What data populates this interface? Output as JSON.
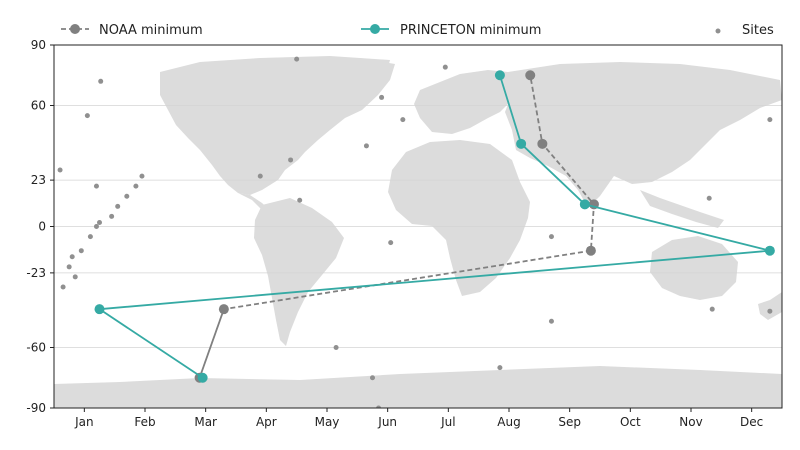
{
  "chart_data": {
    "type": "line",
    "title": "",
    "xlabel": "",
    "ylabel": "",
    "x_axis": {
      "type": "months",
      "range": [
        0.5,
        12.5
      ],
      "ticks": [
        {
          "value": 1,
          "label": "Jan"
        },
        {
          "value": 2,
          "label": "Feb"
        },
        {
          "value": 3,
          "label": "Mar"
        },
        {
          "value": 4,
          "label": "Apr"
        },
        {
          "value": 5,
          "label": "May"
        },
        {
          "value": 6,
          "label": "Jun"
        },
        {
          "value": 7,
          "label": "Jul"
        },
        {
          "value": 8,
          "label": "Aug"
        },
        {
          "value": 9,
          "label": "Sep"
        },
        {
          "value": 10,
          "label": "Oct"
        },
        {
          "value": 11,
          "label": "Nov"
        },
        {
          "value": 12,
          "label": "Dec"
        }
      ]
    },
    "y_axis": {
      "range": [
        -90,
        90
      ],
      "ticks": [
        {
          "value": 90,
          "label": "90"
        },
        {
          "value": 60,
          "label": "60"
        },
        {
          "value": 23,
          "label": "23"
        },
        {
          "value": 0,
          "label": "0"
        },
        {
          "value": -23,
          "label": "-23"
        },
        {
          "value": -60,
          "label": "-60"
        },
        {
          "value": -90,
          "label": "-90"
        }
      ]
    },
    "grid": "horizontal",
    "legend_position": "top",
    "background": "world map (land masses) behind the plot",
    "series": [
      {
        "name": "NOAA minimum",
        "style": "dashed",
        "color": "#808080",
        "points": [
          {
            "x": 3.3,
            "y": -41
          },
          {
            "x": 2.9,
            "y": -75
          },
          {
            "x": 3.3,
            "y": -41
          },
          {
            "x": 9.35,
            "y": -12
          },
          {
            "x": 9.4,
            "y": 11
          },
          {
            "x": 8.55,
            "y": 41
          },
          {
            "x": 8.35,
            "y": 75
          }
        ]
      },
      {
        "name": "PRINCETON minimum",
        "style": "solid",
        "color": "#35aaa4",
        "points": [
          {
            "x": 7.85,
            "y": 75
          },
          {
            "x": 8.2,
            "y": 41
          },
          {
            "x": 9.25,
            "y": 11
          },
          {
            "x": 12.3,
            "y": -12
          },
          {
            "x": 1.25,
            "y": -41
          },
          {
            "x": 2.95,
            "y": -75
          }
        ]
      },
      {
        "name": "Sites",
        "style": "scatter",
        "color": "#909090",
        "points": [
          {
            "x": 0.6,
            "y": 28
          },
          {
            "x": 0.75,
            "y": -20
          },
          {
            "x": 0.65,
            "y": -30
          },
          {
            "x": 0.8,
            "y": -15
          },
          {
            "x": 0.85,
            "y": -25
          },
          {
            "x": 0.95,
            "y": -12
          },
          {
            "x": 1.1,
            "y": -5
          },
          {
            "x": 1.2,
            "y": 0
          },
          {
            "x": 1.25,
            "y": 2
          },
          {
            "x": 1.45,
            "y": 5
          },
          {
            "x": 1.55,
            "y": 10
          },
          {
            "x": 1.7,
            "y": 15
          },
          {
            "x": 1.85,
            "y": 20
          },
          {
            "x": 1.95,
            "y": 25
          },
          {
            "x": 1.2,
            "y": 20
          },
          {
            "x": 1.05,
            "y": 55
          },
          {
            "x": 1.27,
            "y": 72
          },
          {
            "x": 3.9,
            "y": 25
          },
          {
            "x": 4.4,
            "y": 33
          },
          {
            "x": 4.55,
            "y": 13
          },
          {
            "x": 4.5,
            "y": 83
          },
          {
            "x": 5.15,
            "y": -60
          },
          {
            "x": 5.65,
            "y": 40
          },
          {
            "x": 5.9,
            "y": 64
          },
          {
            "x": 6.25,
            "y": 53
          },
          {
            "x": 6.05,
            "y": -8
          },
          {
            "x": 5.75,
            "y": -75
          },
          {
            "x": 5.85,
            "y": -90
          },
          {
            "x": 6.95,
            "y": 79
          },
          {
            "x": 7.85,
            "y": -70
          },
          {
            "x": 8.7,
            "y": -5
          },
          {
            "x": 8.7,
            "y": -47
          },
          {
            "x": 11.3,
            "y": 14
          },
          {
            "x": 11.35,
            "y": -41
          },
          {
            "x": 12.3,
            "y": 53
          },
          {
            "x": 12.3,
            "y": -42
          }
        ]
      }
    ]
  }
}
